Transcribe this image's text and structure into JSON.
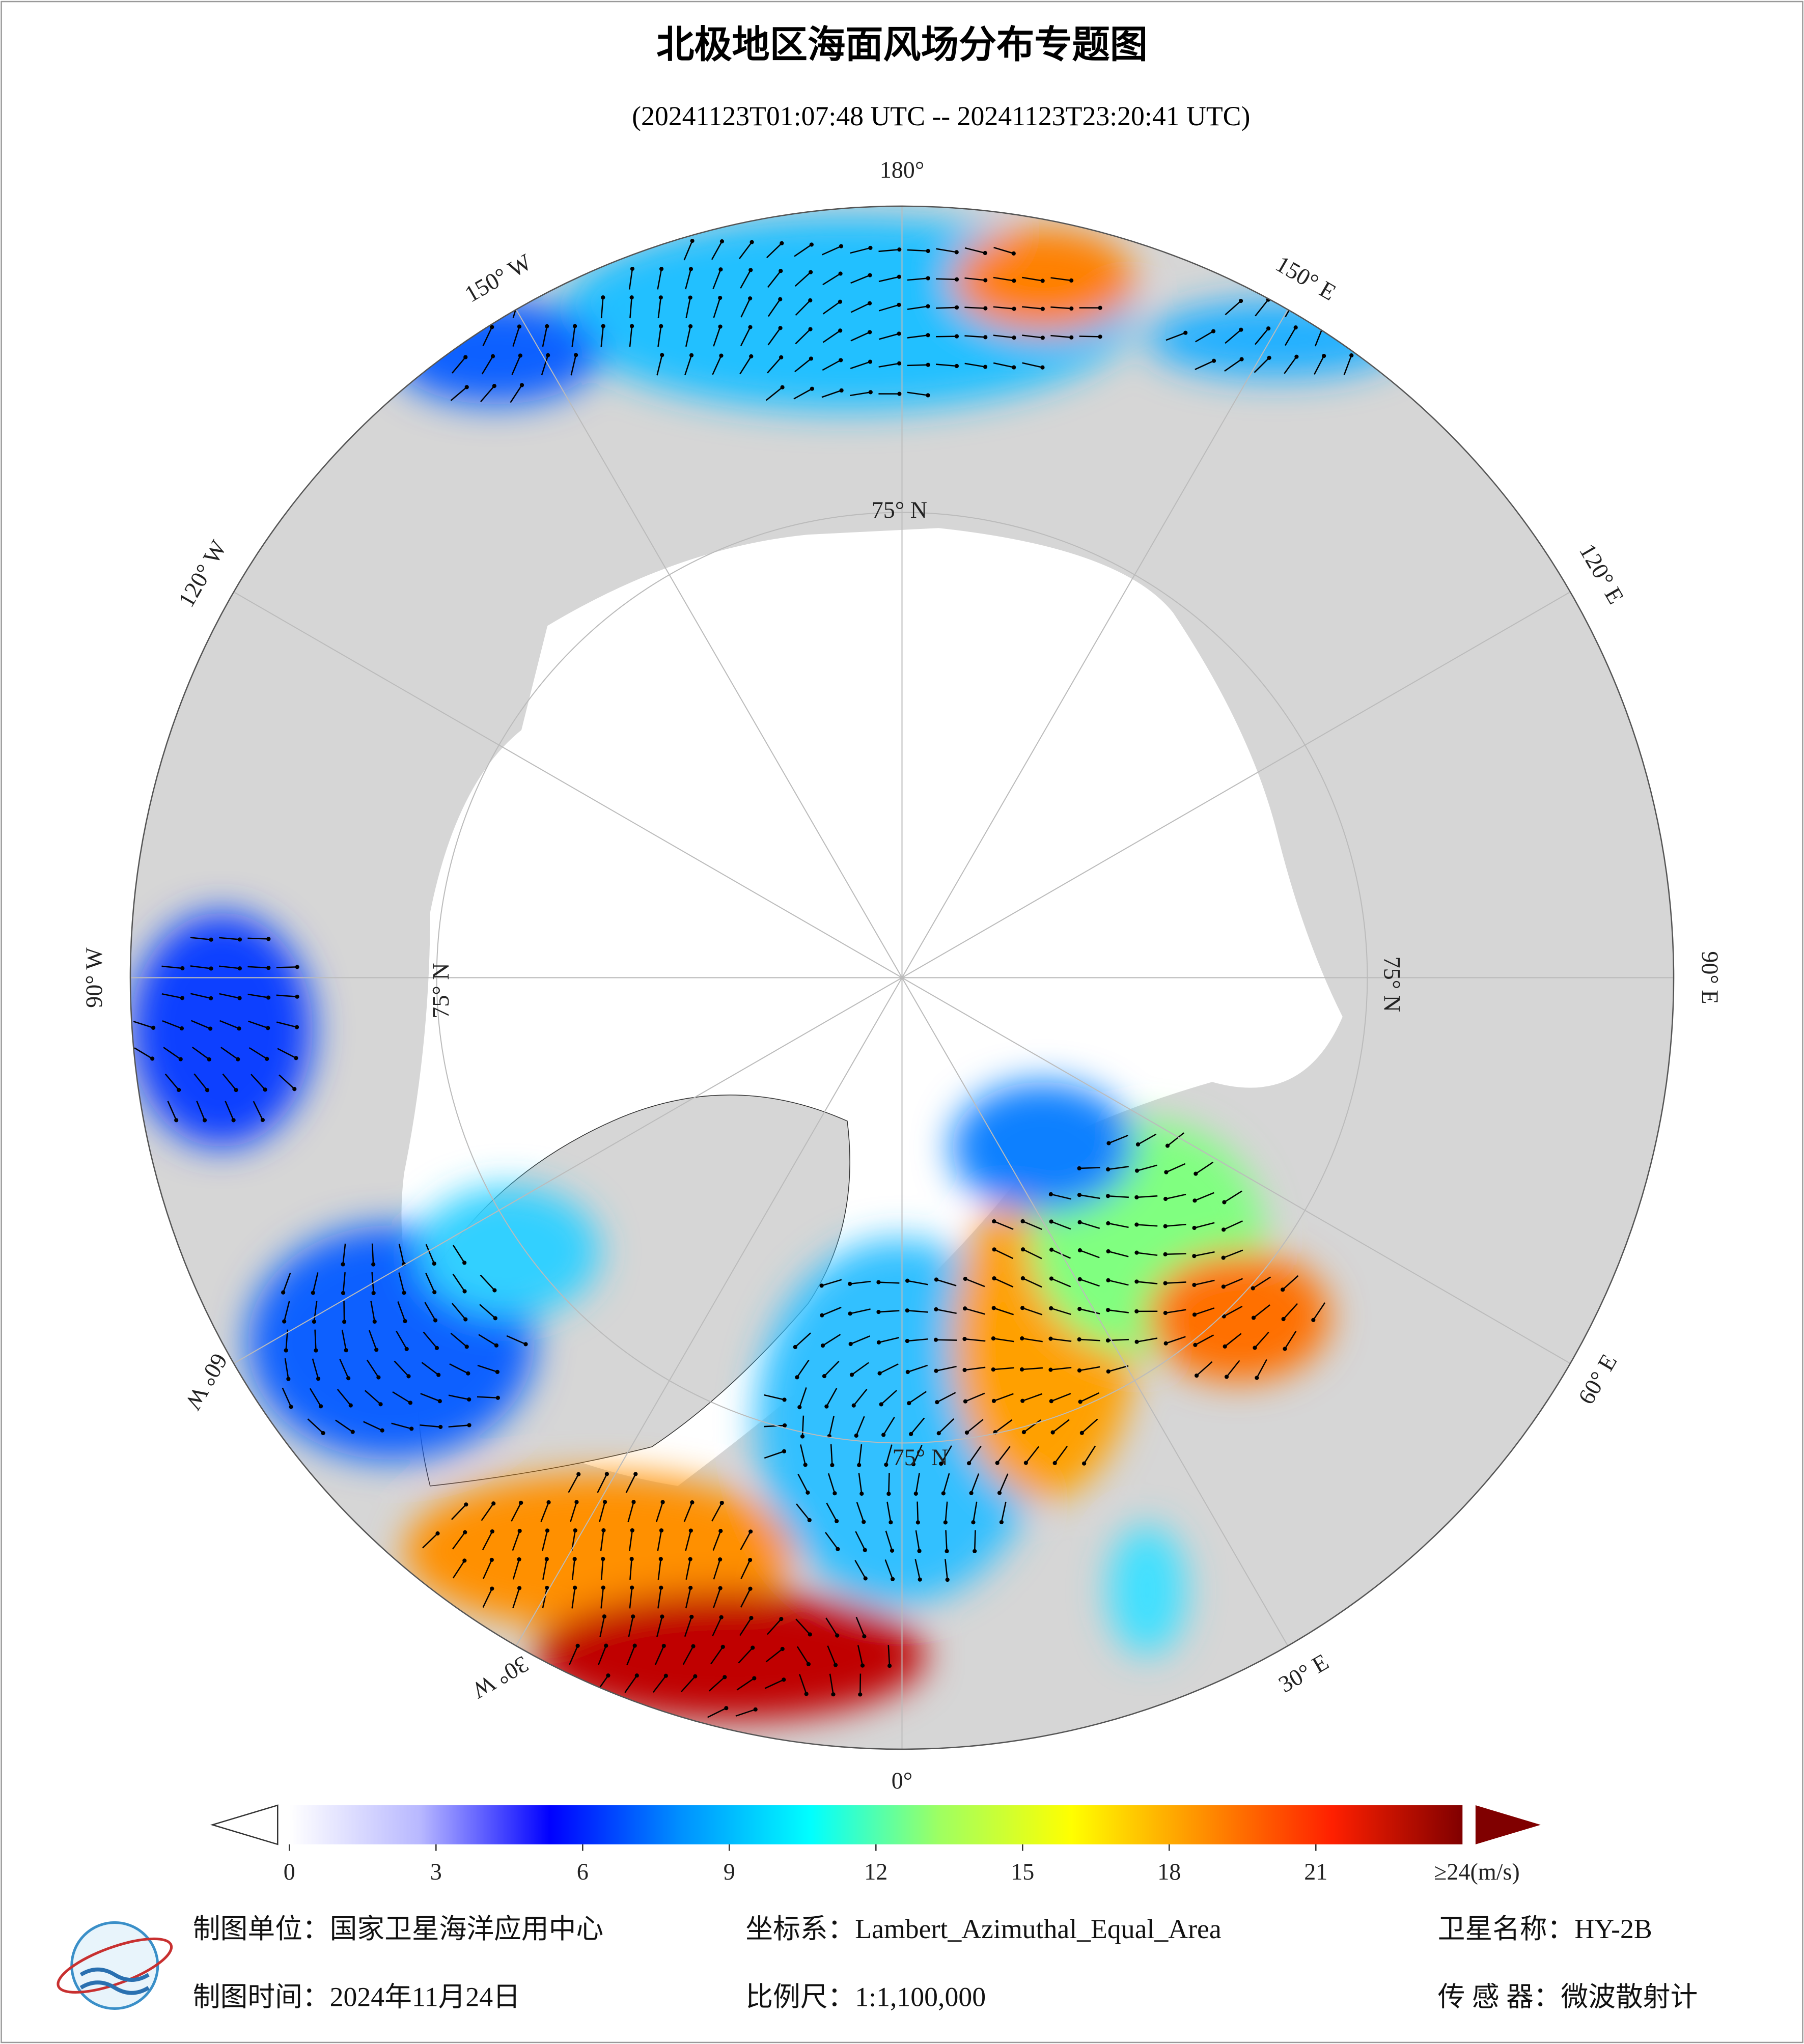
{
  "header": {
    "title": "北极地区海面风场分布专题图",
    "subtitle": "(20241123T01:07:48 UTC -- 20241123T23:20:41 UTC)"
  },
  "map": {
    "longitude_labels": [
      "180°",
      "150° E",
      "120° E",
      "90° E",
      "60° E",
      "30° E",
      "0°",
      "30° W",
      "60° W",
      "90° W",
      "120° W",
      "150° W"
    ],
    "latitude_labels": [
      "75° N",
      "75° N",
      "75° N",
      "75° N"
    ]
  },
  "colorbar": {
    "ticks": [
      0,
      3,
      6,
      9,
      12,
      15,
      18,
      21
    ],
    "max_label": "≥24(m/s)",
    "range": [
      0,
      24
    ],
    "colors": [
      "#ffffff",
      "#b8b8ff",
      "#0000ff",
      "#0090ff",
      "#00ffff",
      "#a0ff60",
      "#ffff00",
      "#ff9000",
      "#ff2000",
      "#800000"
    ]
  },
  "footer": {
    "unit": "制图单位：国家卫星海洋应用中心",
    "projection": "坐标系：Lambert_Azimuthal_Equal_Area",
    "satellite": "卫星名称：HY-2B",
    "date": "制图时间：2024年11月24日",
    "scale": "比例尺：1:1,100,000",
    "sensor": "传 感 器：微波散射计"
  }
}
